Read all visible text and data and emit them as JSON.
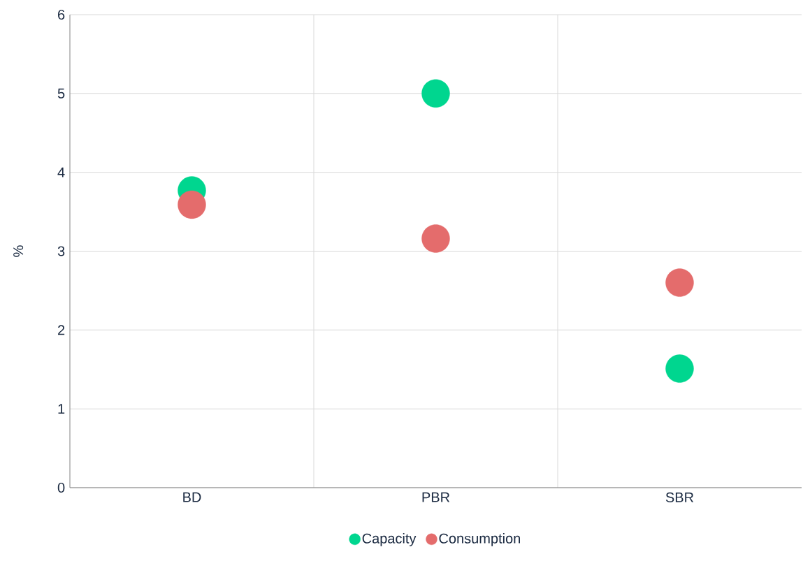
{
  "chart_data": {
    "type": "scatter",
    "ylabel": "%",
    "categories": [
      "BD",
      "PBR",
      "SBR"
    ],
    "series": [
      {
        "name": "Capacity",
        "color": "#00d68f",
        "values": [
          3.77,
          5.0,
          1.51
        ]
      },
      {
        "name": "Consumption",
        "color": "#e46c6c",
        "values": [
          3.59,
          3.16,
          2.6
        ]
      }
    ],
    "ylim": [
      0,
      6
    ],
    "yticks": [
      0,
      1,
      2,
      3,
      4,
      5,
      6
    ],
    "grid": true,
    "legend": "bottom"
  }
}
